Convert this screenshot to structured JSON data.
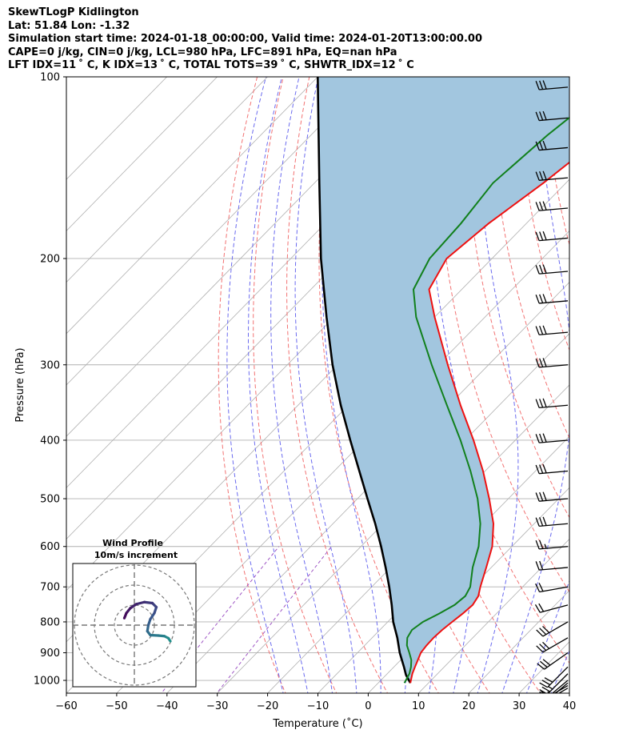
{
  "header": {
    "title": "SkewTLogP Kidlington",
    "location": "Lat: 51.84   Lon: -1.32",
    "times": "Simulation start time: 2024-01-18_00:00:00, Valid time: 2024-01-20T13:00:00.00",
    "params": "CAPE=0 j/kg, CIN=0 j/kg, LCL=980 hPa, LFC=891 hPa, EQ=nan hPa",
    "indices": "LFT IDX=11 ˚ C, K IDX=13 ˚ C, TOTAL TOTS=39 ˚ C, SHWTR_IDX=12 ˚ C"
  },
  "chart_data": {
    "type": "skew-t",
    "xlabel": "Temperature (˚C)",
    "ylabel": "Pressure (hPa)",
    "xlim": [
      -60,
      40
    ],
    "ylim": [
      1050,
      100
    ],
    "y_log": true,
    "grid": true,
    "xticks": [
      -60,
      -50,
      -40,
      -30,
      -20,
      -10,
      0,
      10,
      20,
      30,
      40
    ],
    "xtick_labels": [
      "−60",
      "−50",
      "−40",
      "−30",
      "−20",
      "−10",
      "0",
      "10",
      "20",
      "30",
      "40"
    ],
    "yticks": [
      1000,
      900,
      800,
      700,
      600,
      500,
      400,
      300,
      200,
      100
    ],
    "ytick_labels": [
      "1000",
      "900",
      "800",
      "700",
      "600",
      "500",
      "400",
      "300",
      "200",
      "100"
    ],
    "colors": {
      "temperature": "#ee1111",
      "dewpoint": "#11801c",
      "parcel": "#000000",
      "shade": "#a2c6df",
      "dry_adiabat": "#f27272",
      "moist_adiabat": "#6b6bef",
      "isotherm": "#b0b0b0",
      "mixing_ratio": "#9e55c4"
    },
    "temperature": {
      "pressure": [
        1010,
        1000,
        975,
        950,
        925,
        900,
        875,
        850,
        825,
        800,
        775,
        750,
        725,
        700,
        650,
        600,
        550,
        500,
        450,
        400,
        350,
        300,
        250,
        225,
        200,
        175,
        150,
        125,
        100
      ],
      "temp": [
        6.4,
        6.0,
        5.0,
        4.2,
        3.4,
        2.6,
        2.3,
        2.2,
        2.4,
        2.8,
        3.3,
        3.6,
        3.0,
        1.6,
        -1.0,
        -3.9,
        -8.1,
        -13.8,
        -20.4,
        -28.3,
        -37.7,
        -48.1,
        -60.0,
        -66.5,
        -69.0,
        -67.5,
        -64.5,
        -61.8,
        -60.5
      ]
    },
    "dewpoint": {
      "pressure": [
        1010,
        1000,
        975,
        950,
        925,
        900,
        875,
        850,
        825,
        800,
        775,
        750,
        725,
        700,
        650,
        600,
        550,
        500,
        450,
        400,
        350,
        300,
        250,
        225,
        200,
        175,
        150,
        125,
        100
      ],
      "dewpt": [
        5.2,
        5.0,
        4.4,
        3.4,
        2.1,
        0.3,
        -1.6,
        -3.0,
        -3.6,
        -3.0,
        -1.4,
        0.0,
        0.4,
        -0.4,
        -3.7,
        -6.6,
        -10.7,
        -16.1,
        -22.9,
        -30.9,
        -40.4,
        -51.3,
        -63.7,
        -69.6,
        -72.4,
        -73.0,
        -74.5,
        -73.0,
        -69.8
      ]
    },
    "parcel": {
      "pressure": [
        1010,
        1000,
        980,
        950,
        900,
        850,
        800,
        750,
        700,
        650,
        600,
        550,
        500,
        450,
        400,
        350,
        300,
        250,
        200,
        150,
        100
      ],
      "temp": [
        6.4,
        5.6,
        4.0,
        2.0,
        -1.6,
        -5.0,
        -8.9,
        -12.5,
        -16.5,
        -21.0,
        -26.0,
        -31.6,
        -38.0,
        -45.0,
        -52.8,
        -61.5,
        -71.0,
        -81.5,
        -94.0,
        -109.0,
        -130.0
      ]
    },
    "isotherms": [
      -160,
      -150,
      -140,
      -130,
      -120,
      -110,
      -100,
      -90,
      -80,
      -70,
      -60,
      -50,
      -40,
      -30,
      -20,
      -10,
      0,
      10,
      20,
      30,
      40
    ],
    "dry_adiabats_theta_c": [
      -20,
      -10,
      0,
      10,
      20,
      30,
      40,
      50,
      60,
      70,
      80,
      90,
      100,
      110,
      120
    ],
    "moist_adiabats_start_c": [
      -20,
      -15,
      -10,
      -5,
      0,
      5,
      10,
      15,
      20,
      25,
      30,
      35
    ],
    "mixing_ratio_g_kg": [
      0.1,
      0.3
    ],
    "wind_barbs": [
      {
        "p": 1030,
        "speed": 25,
        "dir": 240
      },
      {
        "p": 1020,
        "speed": 25,
        "dir": 240
      },
      {
        "p": 1010,
        "speed": 25,
        "dir": 230
      },
      {
        "p": 1000,
        "speed": 25,
        "dir": 230
      },
      {
        "p": 975,
        "speed": 25,
        "dir": 225
      },
      {
        "p": 950,
        "speed": 30,
        "dir": 225
      },
      {
        "p": 900,
        "speed": 30,
        "dir": 235
      },
      {
        "p": 850,
        "speed": 30,
        "dir": 240
      },
      {
        "p": 800,
        "speed": 30,
        "dir": 240
      },
      {
        "p": 750,
        "speed": 20,
        "dir": 255
      },
      {
        "p": 700,
        "speed": 20,
        "dir": 260
      },
      {
        "p": 650,
        "speed": 20,
        "dir": 265
      },
      {
        "p": 600,
        "speed": 25,
        "dir": 265
      },
      {
        "p": 550,
        "speed": 30,
        "dir": 265
      },
      {
        "p": 500,
        "speed": 30,
        "dir": 265
      },
      {
        "p": 450,
        "speed": 30,
        "dir": 265
      },
      {
        "p": 400,
        "speed": 30,
        "dir": 265
      },
      {
        "p": 350,
        "speed": 30,
        "dir": 265
      },
      {
        "p": 300,
        "speed": 30,
        "dir": 265
      },
      {
        "p": 265,
        "speed": 30,
        "dir": 265
      },
      {
        "p": 235,
        "speed": 30,
        "dir": 265
      },
      {
        "p": 210,
        "speed": 30,
        "dir": 265
      },
      {
        "p": 185,
        "speed": 30,
        "dir": 265
      },
      {
        "p": 165,
        "speed": 30,
        "dir": 265
      },
      {
        "p": 147,
        "speed": 30,
        "dir": 265
      },
      {
        "p": 131,
        "speed": 30,
        "dir": 265
      },
      {
        "p": 117,
        "speed": 30,
        "dir": 265
      },
      {
        "p": 104,
        "speed": 30,
        "dir": 265
      }
    ],
    "hodograph": {
      "title": "Wind Profile",
      "subtitle": "10m/s increment",
      "rings_ms": [
        10,
        20,
        30
      ],
      "u": [
        18,
        17,
        15,
        12,
        8,
        6.5,
        7,
        8,
        10,
        11,
        9,
        5,
        1,
        -2,
        -4,
        -5
      ],
      "v": [
        -8,
        -6.5,
        -5.5,
        -5.2,
        -5,
        -3,
        0,
        3,
        6,
        9,
        11,
        11.5,
        10.5,
        8.5,
        6,
        3.5
      ]
    }
  }
}
